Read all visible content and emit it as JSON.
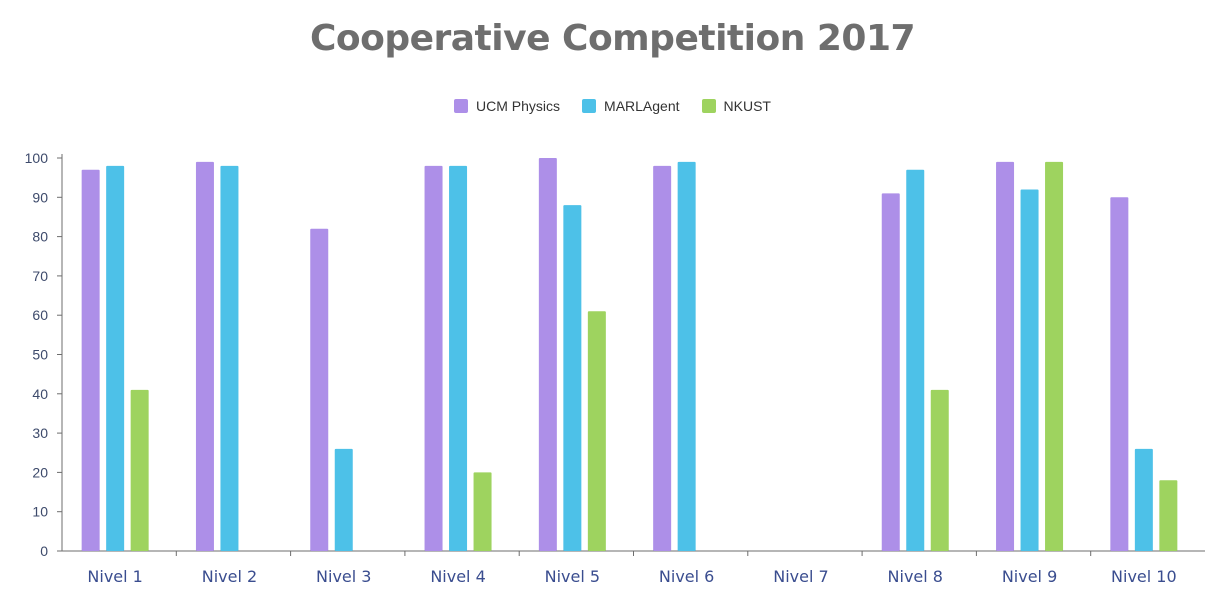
{
  "chart_data": {
    "type": "bar",
    "title": "Cooperative Competition 2017",
    "xlabel": "",
    "ylabel": "",
    "ylim": [
      0,
      100
    ],
    "yticks": [
      0,
      10,
      20,
      30,
      40,
      50,
      60,
      70,
      80,
      90,
      100
    ],
    "legend_position": "top-center",
    "grid": false,
    "categories": [
      "Nivel 1",
      "Nivel 2",
      "Nivel 3",
      "Nivel 4",
      "Nivel 5",
      "Nivel 6",
      "Nivel 7",
      "Nivel 8",
      "Nivel 9",
      "Nivel 10"
    ],
    "series": [
      {
        "name": "UCM Physics",
        "color": "#ad8fe8",
        "values": [
          97,
          99,
          82,
          98,
          100,
          98,
          0,
          91,
          99,
          90
        ]
      },
      {
        "name": "MARLAgent",
        "color": "#4dc1e8",
        "values": [
          98,
          98,
          26,
          98,
          88,
          99,
          0,
          97,
          92,
          26
        ]
      },
      {
        "name": "NKUST",
        "color": "#9ed35f",
        "values": [
          41,
          0,
          0,
          20,
          61,
          0,
          0,
          41,
          99,
          18
        ]
      }
    ]
  }
}
